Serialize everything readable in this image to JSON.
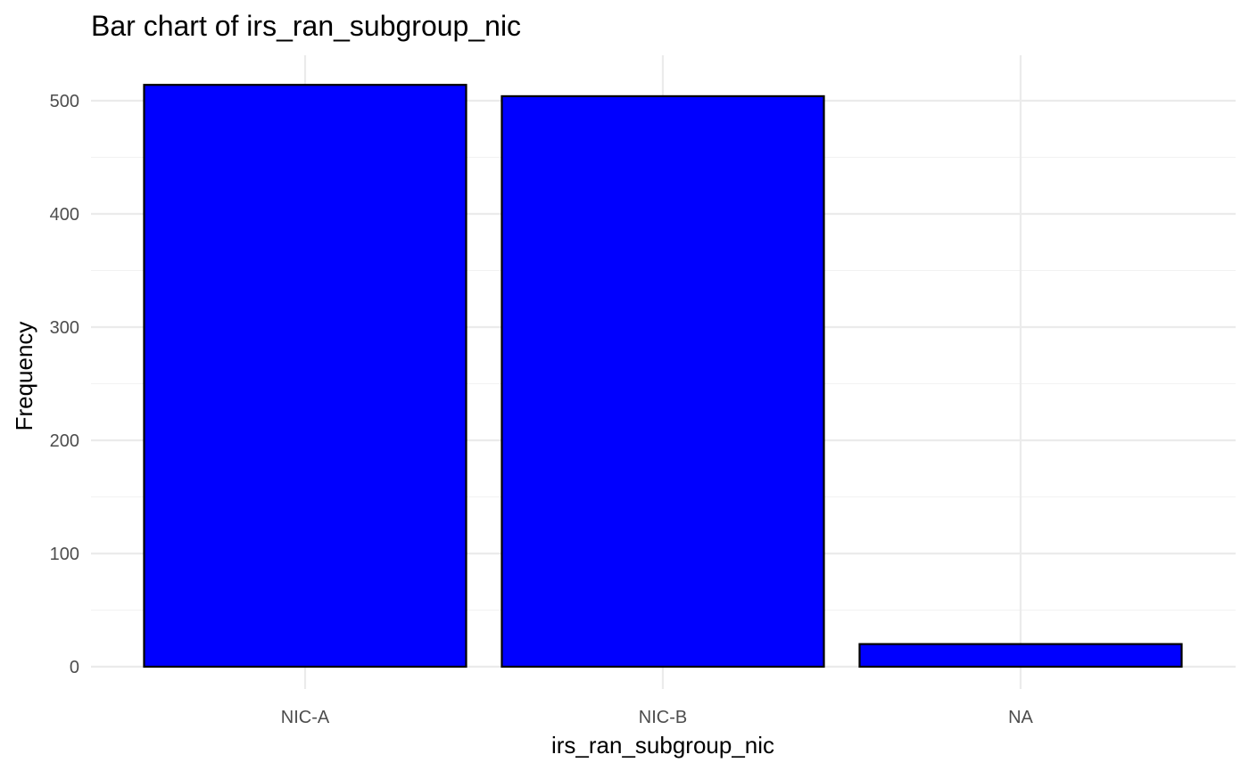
{
  "chart_data": {
    "type": "bar",
    "title": "Bar chart of irs_ran_subgroup_nic",
    "xlabel": "irs_ran_subgroup_nic",
    "ylabel": "Frequency",
    "categories": [
      "NIC-A",
      "NIC-B",
      "NA"
    ],
    "values": [
      514,
      504,
      20
    ],
    "ylim": [
      0,
      540
    ],
    "yticks": [
      0,
      100,
      200,
      300,
      400,
      500
    ],
    "ytick_labels": [
      "0",
      "100",
      "200",
      "300",
      "400",
      "500"
    ],
    "grid": true,
    "legend": "none",
    "bar_fill": "#0000ff",
    "bar_outline": "#000000"
  }
}
